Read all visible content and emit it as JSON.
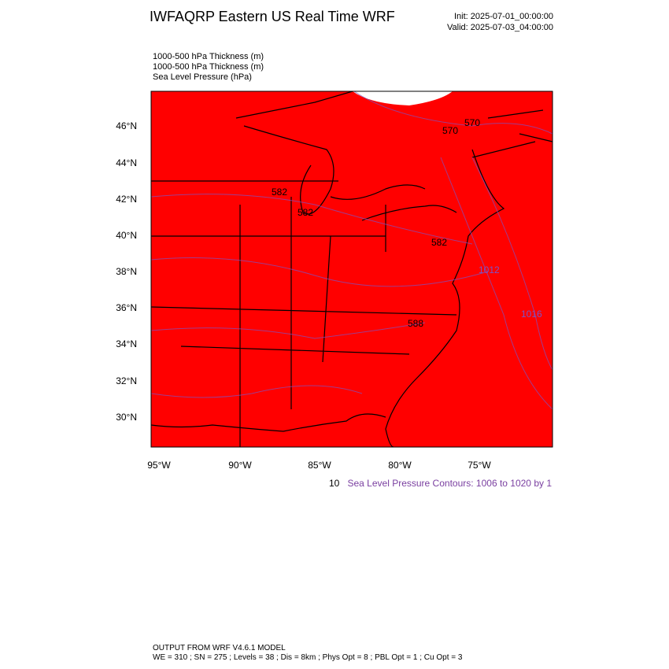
{
  "header": {
    "title": "IWFAQRP Eastern US Real Time WRF",
    "init": "Init: 2025-07-01_00:00:00",
    "valid": "Valid: 2025-07-03_04:00:00"
  },
  "fields": [
    "1000-500 hPa Thickness   (m)",
    "1000-500 hPa Thickness   (m)",
    "Sea Level Pressure   (hPa)"
  ],
  "map": {
    "lat_labels": [
      "46°N",
      "44°N",
      "42°N",
      "40°N",
      "38°N",
      "36°N",
      "34°N",
      "32°N",
      "30°N"
    ],
    "lon_labels": [
      "95°W",
      "90°W",
      "85°W",
      "80°W",
      "75°W"
    ],
    "contour_labels": [
      "570",
      "570",
      "582",
      "582",
      "582",
      "1012",
      "1016",
      "588"
    ],
    "hidden_note": "10",
    "contour_note": "Sea Level Pressure Contours: 1006 to 1020 by 1"
  },
  "footer": {
    "model": "OUTPUT FROM WRF V4.6.1 MODEL",
    "settings": "WE = 310 ; SN = 275 ; Levels = 38 ; Dis = 8km ; Phys Opt = 8 ; PBL Opt = 1 ; Cu Opt = 3"
  }
}
